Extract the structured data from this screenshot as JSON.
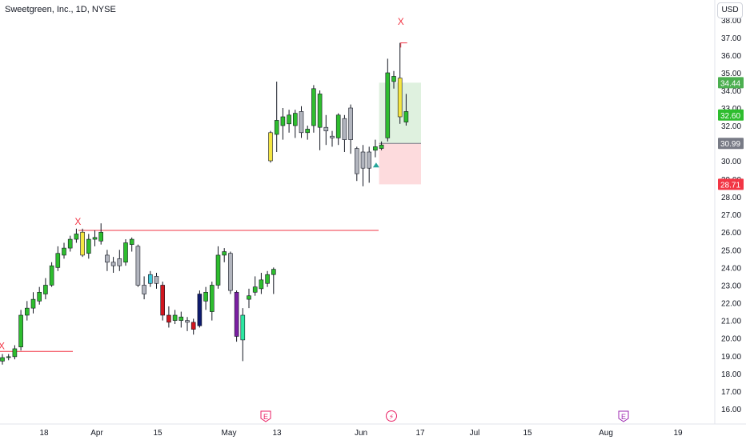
{
  "header": {
    "symbol_title": "Sweetgreen, Inc., 1D, NYSE",
    "currency": "USD"
  },
  "chart_data": {
    "type": "candlestick",
    "symbol": "Sweetgreen, Inc.",
    "interval": "1D",
    "exchange": "NYSE",
    "ylim": [
      15.5,
      38.5
    ],
    "y_ticks": [
      "16.00",
      "17.00",
      "18.00",
      "19.00",
      "20.00",
      "21.00",
      "22.00",
      "23.00",
      "24.00",
      "25.00",
      "26.00",
      "27.00",
      "28.00",
      "29.00",
      "30.00",
      "32.00",
      "33.00",
      "34.00",
      "35.00",
      "36.00",
      "37.00",
      "38.00"
    ],
    "x_ticks": [
      "18",
      "Apr",
      "15",
      "May",
      "13",
      "Jun",
      "17",
      "Jul",
      "15",
      "Aug",
      "19"
    ],
    "price_tags": [
      {
        "text": "34.44",
        "value": 34.44,
        "color": "#4caf50"
      },
      {
        "text": "32.60",
        "value": 32.6,
        "color": "#2ebd2e"
      },
      {
        "text": "30.99",
        "value": 30.99,
        "color": "#787b86"
      },
      {
        "text": "28.71",
        "value": 28.71,
        "color": "#f23645"
      }
    ],
    "position": {
      "entry": 30.99,
      "target": 34.44,
      "stop": 28.71
    },
    "levels": [
      {
        "value": 19.25,
        "color": "#f23645"
      },
      {
        "value": 26.1,
        "color": "#f23645"
      }
    ],
    "markers": [
      {
        "label": "X",
        "value": 19.55,
        "color": "#f23645"
      },
      {
        "label": "X",
        "value": 26.6,
        "color": "#f23645"
      },
      {
        "label": "X",
        "value": 37.9,
        "color": "#f23645"
      }
    ],
    "event_icons": [
      {
        "label": "E",
        "kind": "earnings",
        "color": "#e91e63"
      },
      {
        "label": "⚡",
        "kind": "dividend",
        "color": "#e91e63"
      },
      {
        "label": "E",
        "kind": "earnings",
        "color": "#9c27b0"
      }
    ],
    "candles": [
      {
        "o": 18.7,
        "h": 19.1,
        "l": 18.5,
        "c": 18.9,
        "color": "#2ebd2e"
      },
      {
        "o": 18.9,
        "h": 19.1,
        "l": 18.75,
        "c": 18.95,
        "color": "#2ebd2e"
      },
      {
        "o": 18.95,
        "h": 19.6,
        "l": 18.8,
        "c": 19.4,
        "color": "#2ebd2e"
      },
      {
        "o": 19.5,
        "h": 21.6,
        "l": 19.3,
        "c": 21.3,
        "color": "#2ebd2e"
      },
      {
        "o": 21.3,
        "h": 22.1,
        "l": 21.0,
        "c": 21.7,
        "color": "#2ebd2e"
      },
      {
        "o": 21.7,
        "h": 22.6,
        "l": 21.4,
        "c": 22.2,
        "color": "#2ebd2e"
      },
      {
        "o": 22.1,
        "h": 22.9,
        "l": 21.9,
        "c": 22.6,
        "color": "#2ebd2e"
      },
      {
        "o": 22.5,
        "h": 23.4,
        "l": 22.2,
        "c": 23.0,
        "color": "#2ebd2e"
      },
      {
        "o": 23.0,
        "h": 24.3,
        "l": 22.9,
        "c": 24.1,
        "color": "#2ebd2e"
      },
      {
        "o": 24.0,
        "h": 25.2,
        "l": 23.8,
        "c": 24.8,
        "color": "#2ebd2e"
      },
      {
        "o": 24.7,
        "h": 25.4,
        "l": 24.5,
        "c": 25.1,
        "color": "#2ebd2e"
      },
      {
        "o": 25.1,
        "h": 25.8,
        "l": 24.9,
        "c": 25.6,
        "color": "#2ebd2e"
      },
      {
        "o": 25.6,
        "h": 26.2,
        "l": 25.4,
        "c": 25.9,
        "color": "#2ebd2e"
      },
      {
        "o": 26.0,
        "h": 26.2,
        "l": 24.6,
        "c": 24.7,
        "color": "#f5e642"
      },
      {
        "o": 24.8,
        "h": 25.9,
        "l": 24.5,
        "c": 25.6,
        "color": "#2ebd2e"
      },
      {
        "o": 25.6,
        "h": 26.1,
        "l": 25.2,
        "c": 25.7,
        "color": "#2ebd2e"
      },
      {
        "o": 25.5,
        "h": 26.5,
        "l": 25.3,
        "c": 26.0,
        "color": "#2ebd2e"
      },
      {
        "o": 24.7,
        "h": 25.0,
        "l": 23.8,
        "c": 24.3,
        "color": "#b2b5be"
      },
      {
        "o": 24.3,
        "h": 24.6,
        "l": 23.7,
        "c": 24.1,
        "color": "#b2b5be"
      },
      {
        "o": 24.1,
        "h": 25.0,
        "l": 23.8,
        "c": 24.5,
        "color": "#b2b5be"
      },
      {
        "o": 24.3,
        "h": 25.6,
        "l": 24.1,
        "c": 25.4,
        "color": "#2ebd2e"
      },
      {
        "o": 25.3,
        "h": 25.7,
        "l": 24.9,
        "c": 25.6,
        "color": "#2ebd2e"
      },
      {
        "o": 25.2,
        "h": 25.3,
        "l": 22.9,
        "c": 23.0,
        "color": "#b2b5be"
      },
      {
        "o": 23.0,
        "h": 23.5,
        "l": 22.2,
        "c": 22.5,
        "color": "#b2b5be"
      },
      {
        "o": 23.1,
        "h": 23.8,
        "l": 22.9,
        "c": 23.6,
        "color": "#40c9d8"
      },
      {
        "o": 23.5,
        "h": 23.7,
        "l": 22.8,
        "c": 23.1,
        "color": "#b2b5be"
      },
      {
        "o": 23.0,
        "h": 23.2,
        "l": 21.0,
        "c": 21.3,
        "color": "#d0161e"
      },
      {
        "o": 21.3,
        "h": 21.8,
        "l": 20.6,
        "c": 20.9,
        "color": "#d0161e"
      },
      {
        "o": 21.0,
        "h": 21.6,
        "l": 20.8,
        "c": 21.3,
        "color": "#2ebd2e"
      },
      {
        "o": 21.2,
        "h": 21.5,
        "l": 20.6,
        "c": 21.0,
        "color": "#2ebd2e"
      },
      {
        "o": 21.0,
        "h": 21.2,
        "l": 20.4,
        "c": 20.9,
        "color": "#b2b5be"
      },
      {
        "o": 20.9,
        "h": 21.1,
        "l": 20.2,
        "c": 20.5,
        "color": "#d0161e"
      },
      {
        "o": 20.7,
        "h": 22.7,
        "l": 20.6,
        "c": 22.5,
        "color": "#0d1a6e"
      },
      {
        "o": 22.1,
        "h": 22.9,
        "l": 21.6,
        "c": 22.6,
        "color": "#2ebd2e"
      },
      {
        "o": 21.5,
        "h": 23.2,
        "l": 21.0,
        "c": 23.0,
        "color": "#2ebd2e"
      },
      {
        "o": 23.0,
        "h": 25.2,
        "l": 22.8,
        "c": 24.7,
        "color": "#2ebd2e"
      },
      {
        "o": 24.7,
        "h": 25.1,
        "l": 24.3,
        "c": 24.9,
        "color": "#2ebd2e"
      },
      {
        "o": 24.8,
        "h": 24.9,
        "l": 22.5,
        "c": 22.7,
        "color": "#b2b5be"
      },
      {
        "o": 22.6,
        "h": 22.7,
        "l": 19.8,
        "c": 20.1,
        "color": "#7b1fa2"
      },
      {
        "o": 19.9,
        "h": 21.7,
        "l": 18.7,
        "c": 21.3,
        "color": "#2ee8a2"
      },
      {
        "o": 22.2,
        "h": 22.8,
        "l": 21.7,
        "c": 22.4,
        "color": "#2ebd2e"
      },
      {
        "o": 22.6,
        "h": 23.5,
        "l": 22.4,
        "c": 22.9,
        "color": "#2ebd2e"
      },
      {
        "o": 22.8,
        "h": 23.7,
        "l": 22.5,
        "c": 23.3,
        "color": "#2ebd2e"
      },
      {
        "o": 23.1,
        "h": 23.8,
        "l": 22.9,
        "c": 23.6,
        "color": "#2ebd2e"
      },
      {
        "o": 23.6,
        "h": 24.0,
        "l": 22.5,
        "c": 23.9,
        "color": "#2ebd2e"
      },
      {
        "o": 30.0,
        "h": 31.7,
        "l": 29.9,
        "c": 31.6,
        "color": "#f5e642"
      },
      {
        "o": 31.5,
        "h": 34.5,
        "l": 30.5,
        "c": 32.3,
        "color": "#2ebd2e"
      },
      {
        "o": 32.0,
        "h": 33.0,
        "l": 31.2,
        "c": 32.5,
        "color": "#2ebd2e"
      },
      {
        "o": 32.1,
        "h": 32.9,
        "l": 31.6,
        "c": 32.6,
        "color": "#2ebd2e"
      },
      {
        "o": 32.0,
        "h": 32.9,
        "l": 31.3,
        "c": 32.7,
        "color": "#2ebd2e"
      },
      {
        "o": 32.8,
        "h": 33.1,
        "l": 31.3,
        "c": 31.6,
        "color": "#b2b5be"
      },
      {
        "o": 31.6,
        "h": 32.0,
        "l": 31.2,
        "c": 31.8,
        "color": "#2ebd2e"
      },
      {
        "o": 32.0,
        "h": 34.3,
        "l": 31.6,
        "c": 34.1,
        "color": "#2ebd2e"
      },
      {
        "o": 33.8,
        "h": 34.0,
        "l": 30.6,
        "c": 31.9,
        "color": "#2ebd2e"
      },
      {
        "o": 31.9,
        "h": 32.6,
        "l": 30.9,
        "c": 31.7,
        "color": "#b2b5be"
      },
      {
        "o": 31.4,
        "h": 31.7,
        "l": 30.8,
        "c": 31.3,
        "color": "#b2b5be"
      },
      {
        "o": 31.3,
        "h": 32.7,
        "l": 30.9,
        "c": 32.6,
        "color": "#2ebd2e"
      },
      {
        "o": 32.4,
        "h": 32.6,
        "l": 30.5,
        "c": 31.2,
        "color": "#b2b5be"
      },
      {
        "o": 33.0,
        "h": 33.2,
        "l": 30.4,
        "c": 31.2,
        "color": "#b2b5be"
      },
      {
        "o": 30.7,
        "h": 30.8,
        "l": 28.9,
        "c": 29.3,
        "color": "#b2b5be"
      },
      {
        "o": 29.6,
        "h": 30.9,
        "l": 28.6,
        "c": 30.5,
        "color": "#b2b5be"
      },
      {
        "o": 30.5,
        "h": 30.8,
        "l": 28.8,
        "c": 29.6,
        "color": "#b2b5be"
      },
      {
        "o": 30.6,
        "h": 31.2,
        "l": 30.2,
        "c": 30.8,
        "color": "#2ebd2e"
      },
      {
        "o": 30.7,
        "h": 31.1,
        "l": 30.6,
        "c": 30.9,
        "color": "#2ebd2e"
      },
      {
        "o": 31.3,
        "h": 35.8,
        "l": 31.1,
        "c": 35.0,
        "color": "#2ebd2e"
      },
      {
        "o": 34.5,
        "h": 35.1,
        "l": 34.1,
        "c": 34.8,
        "color": "#2ebd2e"
      },
      {
        "o": 34.7,
        "h": 36.7,
        "l": 32.1,
        "c": 32.5,
        "color": "#f5e642"
      },
      {
        "o": 32.2,
        "h": 33.8,
        "l": 32.0,
        "c": 32.8,
        "color": "#2ebd2e"
      }
    ]
  }
}
